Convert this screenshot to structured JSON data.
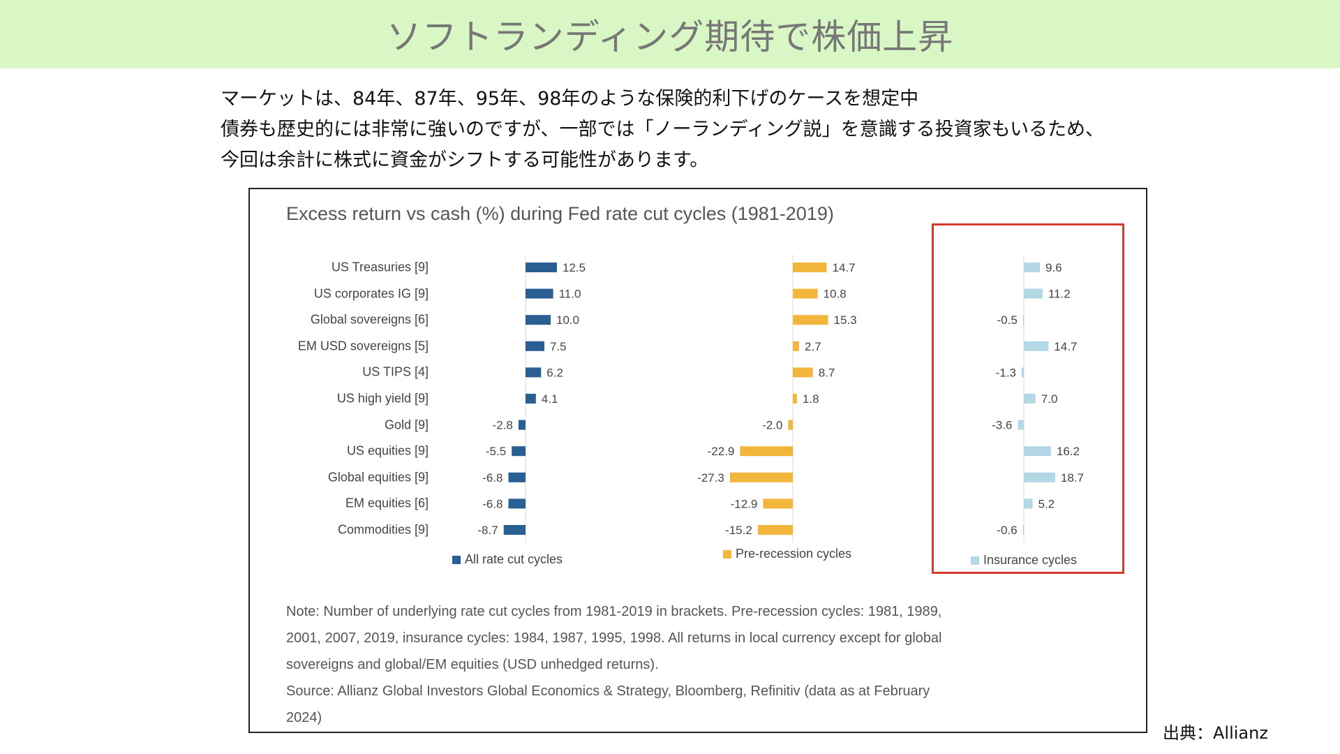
{
  "page": {
    "banner_title": "ソフトランディング期待で株価上昇",
    "intro_lines": [
      "マーケットは、84年、87年、95年、98年のような保険的利下げのケースを想定中",
      "債券も歴史的には非常に強いのですが、一部では「ノーランディング説」を意識する投資家もいるため、",
      "今回は余計に株式に資金がシフトする可能性があります。"
    ],
    "source_credit": "出典：Allianz"
  },
  "chart_data": {
    "type": "bar",
    "orientation": "horizontal",
    "title": "Excess return vs cash (%) during Fed rate cut cycles (1981-2019)",
    "categories": [
      "US Treasuries [9]",
      "US corporates IG [9]",
      "Global sovereigns [6]",
      "EM USD sovereigns [5]",
      "US TIPS [4]",
      "US high yield [9]",
      "Gold [9]",
      "US equities [9]",
      "Global equities [9]",
      "EM equities [6]",
      "Commodities [9]"
    ],
    "series": [
      {
        "name": "All rate cut cycles",
        "color": "#2a5f93",
        "values": [
          12.5,
          11.0,
          10.0,
          7.5,
          6.2,
          4.1,
          -2.8,
          -5.5,
          -6.8,
          -6.8,
          -8.7
        ],
        "labels": [
          "12.5",
          "11.0",
          "10.0",
          "7.5",
          "6.2",
          "4.1",
          "-2.8",
          "-5.5",
          "-6.8",
          "-6.8",
          "-8.7"
        ]
      },
      {
        "name": "Pre-recession cycles",
        "color": "#f3b63c",
        "values": [
          14.7,
          10.8,
          15.3,
          2.7,
          8.7,
          1.8,
          -2.0,
          -22.9,
          -27.3,
          -12.9,
          -15.2
        ],
        "labels": [
          "14.7",
          "10.8",
          "15.3",
          "2.7",
          "8.7",
          "1.8",
          "-2.0",
          "-22.9",
          "-27.3",
          "-12.9",
          "-15.2"
        ]
      },
      {
        "name": "Insurance cycles",
        "color": "#b2d8e6",
        "values": [
          9.6,
          11.2,
          -0.5,
          14.7,
          -1.3,
          7.0,
          -3.6,
          16.2,
          18.7,
          5.2,
          -0.6
        ],
        "labels": [
          "9.6",
          "11.2",
          "-0.5",
          "14.7",
          "-1.3",
          "7.0",
          "-3.6",
          "16.2",
          "18.7",
          "5.2",
          "-0.6"
        ]
      }
    ],
    "highlighted_series": "Insurance cycles",
    "highlight_color": "#d23a2f",
    "note_lines": [
      "Note: Number of underlying rate cut cycles from 1981-2019 in brackets. Pre-recession cycles: 1981, 1989,",
      "2001, 2007, 2019, insurance cycles: 1984, 1987, 1995, 1998. All returns in local currency except for global",
      "sovereigns and global/EM equities (USD unhedged returns).",
      "Source: Allianz Global Investors Global Economics & Strategy, Bloomberg, Refinitiv (data as at February",
      "2024)"
    ]
  }
}
